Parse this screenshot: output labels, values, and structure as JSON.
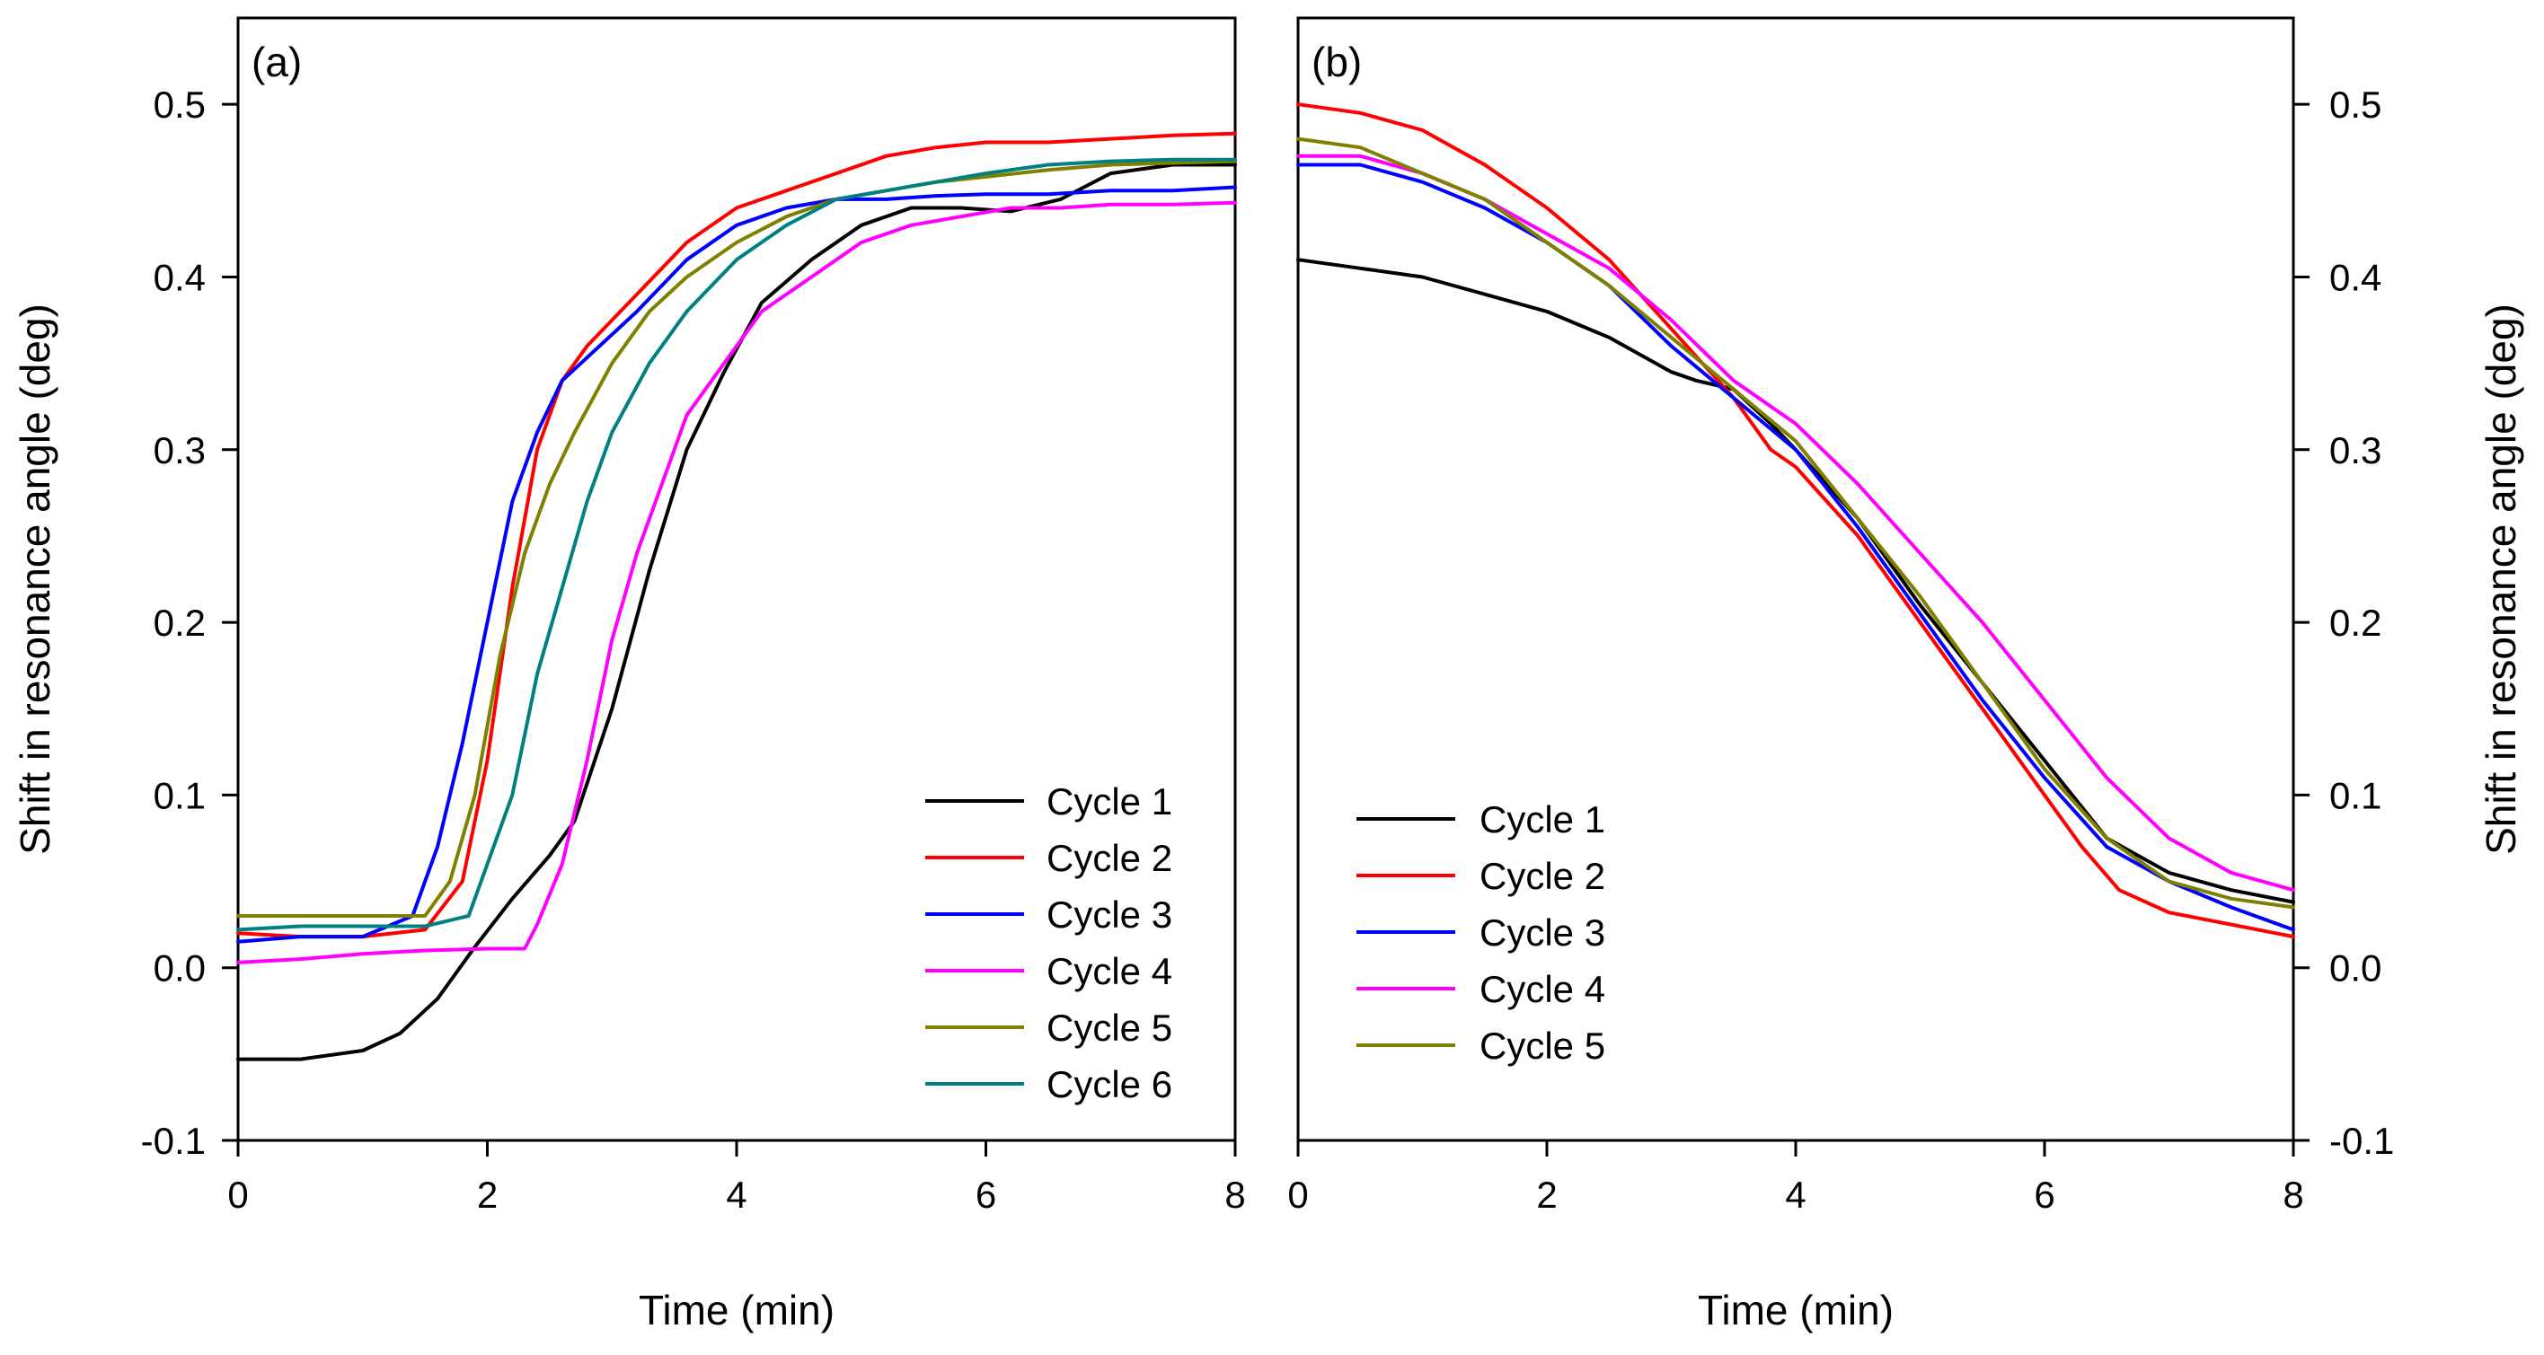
{
  "chart_data": [
    {
      "type": "line",
      "panel_label": "(a)",
      "xlabel": "Time (min)",
      "ylabel": "Shift in resonance angle (deg)",
      "ylabel_side": "left",
      "xlim": [
        0,
        8
      ],
      "ylim": [
        -0.1,
        0.55
      ],
      "x_ticks": [
        0,
        2,
        4,
        6,
        8
      ],
      "x_tick_labels": [
        "0",
        "2",
        "4",
        "6",
        "8"
      ],
      "y_ticks": [
        -0.1,
        0.0,
        0.1,
        0.2,
        0.3,
        0.4,
        0.5
      ],
      "y_tick_labels": [
        "-0.1",
        "0.0",
        "0.1",
        "0.2",
        "0.3",
        "0.4",
        "0.5"
      ],
      "grid": false,
      "legend_position": "bottom-right",
      "series": [
        {
          "name": "Cycle 1",
          "color": "#000000",
          "x": [
            0,
            0.5,
            1.0,
            1.3,
            1.6,
            1.9,
            2.2,
            2.5,
            2.7,
            3.0,
            3.3,
            3.6,
            3.9,
            4.2,
            4.6,
            5.0,
            5.4,
            5.8,
            6.2,
            6.6,
            7.0,
            7.5,
            8.0
          ],
          "y": [
            -0.053,
            -0.053,
            -0.048,
            -0.038,
            -0.018,
            0.012,
            0.04,
            0.065,
            0.085,
            0.15,
            0.23,
            0.3,
            0.345,
            0.385,
            0.41,
            0.43,
            0.44,
            0.44,
            0.438,
            0.445,
            0.46,
            0.465,
            0.465
          ]
        },
        {
          "name": "Cycle 2",
          "color": "#ff0000",
          "x": [
            0,
            0.5,
            1.0,
            1.5,
            1.8,
            2.0,
            2.2,
            2.4,
            2.6,
            2.8,
            3.2,
            3.6,
            4.0,
            4.4,
            4.8,
            5.2,
            5.6,
            6.0,
            6.5,
            7.0,
            7.5,
            8.0
          ],
          "y": [
            0.02,
            0.018,
            0.018,
            0.022,
            0.05,
            0.12,
            0.22,
            0.3,
            0.34,
            0.36,
            0.39,
            0.42,
            0.44,
            0.45,
            0.46,
            0.47,
            0.475,
            0.478,
            0.478,
            0.48,
            0.482,
            0.483
          ]
        },
        {
          "name": "Cycle 3",
          "color": "#0000ff",
          "x": [
            0,
            0.5,
            1.0,
            1.4,
            1.6,
            1.8,
            2.0,
            2.2,
            2.4,
            2.6,
            2.9,
            3.2,
            3.6,
            4.0,
            4.4,
            4.8,
            5.2,
            5.6,
            6.0,
            6.5,
            7.0,
            7.5,
            8.0
          ],
          "y": [
            0.015,
            0.018,
            0.018,
            0.03,
            0.07,
            0.13,
            0.2,
            0.27,
            0.31,
            0.34,
            0.36,
            0.38,
            0.41,
            0.43,
            0.44,
            0.445,
            0.445,
            0.447,
            0.448,
            0.448,
            0.45,
            0.45,
            0.452
          ]
        },
        {
          "name": "Cycle 4",
          "color": "#ff00ff",
          "x": [
            0,
            0.5,
            1.0,
            1.5,
            2.0,
            2.3,
            2.4,
            2.6,
            2.8,
            3.0,
            3.2,
            3.4,
            3.6,
            3.9,
            4.2,
            4.6,
            5.0,
            5.4,
            5.8,
            6.2,
            6.6,
            7.0,
            7.5,
            8.0
          ],
          "y": [
            0.003,
            0.005,
            0.008,
            0.01,
            0.011,
            0.011,
            0.025,
            0.06,
            0.12,
            0.19,
            0.24,
            0.28,
            0.32,
            0.35,
            0.38,
            0.4,
            0.42,
            0.43,
            0.435,
            0.44,
            0.44,
            0.442,
            0.442,
            0.443
          ]
        },
        {
          "name": "Cycle 5",
          "color": "#808000",
          "x": [
            0,
            0.5,
            1.0,
            1.5,
            1.7,
            1.9,
            2.1,
            2.3,
            2.5,
            2.7,
            3.0,
            3.3,
            3.6,
            4.0,
            4.4,
            4.8,
            5.2,
            5.6,
            6.0,
            6.5,
            7.0,
            7.5,
            8.0
          ],
          "y": [
            0.03,
            0.03,
            0.03,
            0.03,
            0.05,
            0.1,
            0.18,
            0.24,
            0.28,
            0.31,
            0.35,
            0.38,
            0.4,
            0.42,
            0.435,
            0.445,
            0.45,
            0.455,
            0.458,
            0.462,
            0.465,
            0.466,
            0.467
          ]
        },
        {
          "name": "Cycle 6",
          "color": "#008080",
          "x": [
            0,
            0.5,
            1.0,
            1.5,
            1.85,
            2.0,
            2.2,
            2.4,
            2.6,
            2.8,
            3.0,
            3.3,
            3.6,
            4.0,
            4.4,
            4.8,
            5.2,
            5.6,
            6.0,
            6.5,
            7.0,
            7.5,
            8.0
          ],
          "y": [
            0.022,
            0.024,
            0.024,
            0.024,
            0.03,
            0.06,
            0.1,
            0.17,
            0.22,
            0.27,
            0.31,
            0.35,
            0.38,
            0.41,
            0.43,
            0.445,
            0.45,
            0.455,
            0.46,
            0.465,
            0.467,
            0.468,
            0.468
          ]
        }
      ]
    },
    {
      "type": "line",
      "panel_label": "(b)",
      "xlabel": "Time (min)",
      "ylabel": "Shift in resonance angle (deg)",
      "ylabel_side": "right",
      "xlim": [
        0,
        8
      ],
      "ylim": [
        -0.1,
        0.55
      ],
      "x_ticks": [
        0,
        2,
        4,
        6,
        8
      ],
      "x_tick_labels": [
        "0",
        "2",
        "4",
        "6",
        "8"
      ],
      "y_ticks": [
        -0.1,
        0.0,
        0.1,
        0.2,
        0.3,
        0.4,
        0.5
      ],
      "y_tick_labels": [
        "-0.1",
        "0.0",
        "0.1",
        "0.2",
        "0.3",
        "0.4",
        "0.5"
      ],
      "grid": false,
      "legend_position": "bottom-left",
      "series": [
        {
          "name": "Cycle 1",
          "color": "#000000",
          "x": [
            0,
            0.5,
            1.0,
            1.5,
            2.0,
            2.5,
            3.0,
            3.2,
            3.5,
            3.8,
            4.0,
            4.5,
            5.0,
            5.5,
            6.0,
            6.5,
            7.0,
            7.5,
            8.0
          ],
          "y": [
            0.41,
            0.405,
            0.4,
            0.39,
            0.38,
            0.365,
            0.345,
            0.34,
            0.335,
            0.315,
            0.3,
            0.26,
            0.21,
            0.165,
            0.12,
            0.075,
            0.055,
            0.045,
            0.038
          ]
        },
        {
          "name": "Cycle 2",
          "color": "#ff0000",
          "x": [
            0,
            0.5,
            1.0,
            1.5,
            2.0,
            2.5,
            3.0,
            3.5,
            3.8,
            4.0,
            4.5,
            5.0,
            5.5,
            6.0,
            6.3,
            6.6,
            7.0,
            7.5,
            8.0
          ],
          "y": [
            0.5,
            0.495,
            0.485,
            0.465,
            0.44,
            0.41,
            0.37,
            0.33,
            0.3,
            0.29,
            0.25,
            0.2,
            0.15,
            0.1,
            0.07,
            0.045,
            0.032,
            0.025,
            0.018
          ]
        },
        {
          "name": "Cycle 3",
          "color": "#0000ff",
          "x": [
            0,
            0.5,
            1.0,
            1.5,
            2.0,
            2.5,
            3.0,
            3.5,
            4.0,
            4.5,
            5.0,
            5.5,
            6.0,
            6.5,
            7.0,
            7.5,
            8.0
          ],
          "y": [
            0.465,
            0.465,
            0.455,
            0.44,
            0.42,
            0.395,
            0.36,
            0.33,
            0.3,
            0.255,
            0.205,
            0.155,
            0.11,
            0.07,
            0.05,
            0.035,
            0.022
          ]
        },
        {
          "name": "Cycle 4",
          "color": "#ff00ff",
          "x": [
            0,
            0.5,
            1.0,
            1.5,
            2.0,
            2.5,
            3.0,
            3.5,
            4.0,
            4.5,
            5.0,
            5.5,
            6.0,
            6.5,
            7.0,
            7.5,
            8.0
          ],
          "y": [
            0.47,
            0.47,
            0.46,
            0.445,
            0.425,
            0.405,
            0.375,
            0.34,
            0.315,
            0.28,
            0.24,
            0.2,
            0.155,
            0.11,
            0.075,
            0.055,
            0.045
          ]
        },
        {
          "name": "Cycle 5",
          "color": "#808000",
          "x": [
            0,
            0.5,
            1.0,
            1.5,
            2.0,
            2.5,
            3.0,
            3.5,
            4.0,
            4.5,
            5.0,
            5.5,
            6.0,
            6.5,
            7.0,
            7.5,
            8.0
          ],
          "y": [
            0.48,
            0.475,
            0.46,
            0.445,
            0.42,
            0.395,
            0.365,
            0.335,
            0.305,
            0.26,
            0.215,
            0.165,
            0.115,
            0.075,
            0.05,
            0.04,
            0.035
          ]
        }
      ]
    }
  ]
}
